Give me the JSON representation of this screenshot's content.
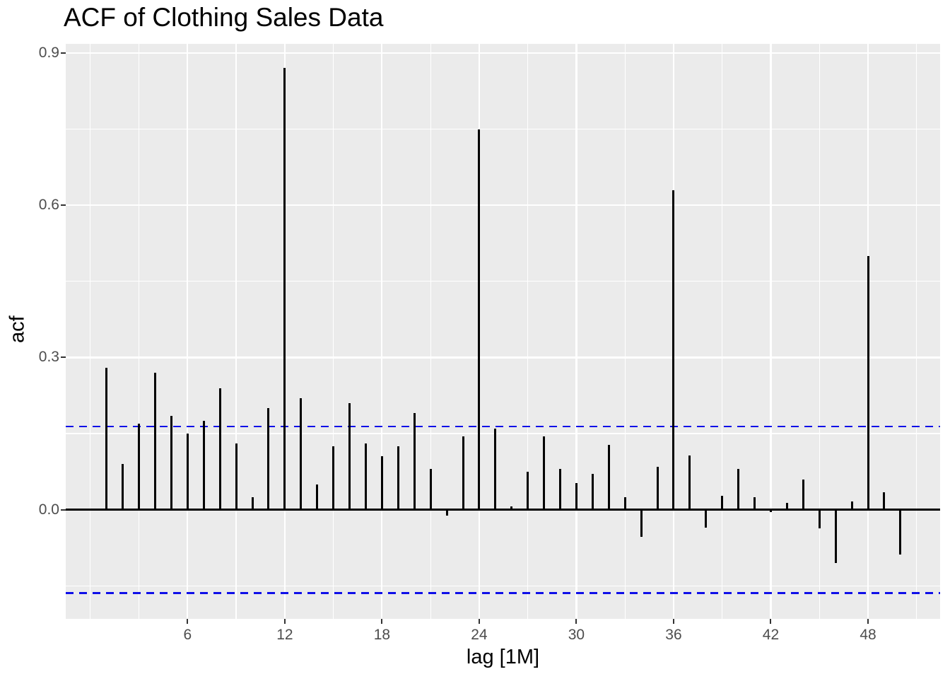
{
  "title": "ACF of Clothing Sales Data",
  "colors": {
    "page_bg": "#ffffff",
    "panel_bg": "#ebebeb",
    "grid": "#ffffff",
    "bar": "#000000",
    "zero_line": "#000000",
    "ci_line": "#0f0fe8",
    "tick_label": "#4d4d4d",
    "tick_mark": "#333333",
    "text": "#000000"
  },
  "chart_data": {
    "type": "bar",
    "subtype": "acf-lollipop",
    "title": "ACF of Clothing Sales Data",
    "xlabel": "lag [1M]",
    "ylabel": "acf",
    "x": [
      1,
      2,
      3,
      4,
      5,
      6,
      7,
      8,
      9,
      10,
      11,
      12,
      13,
      14,
      15,
      16,
      17,
      18,
      19,
      20,
      21,
      22,
      23,
      24,
      25,
      26,
      27,
      28,
      29,
      30,
      31,
      32,
      33,
      34,
      35,
      36,
      37,
      38,
      39,
      40,
      41,
      42,
      43,
      44,
      45,
      46,
      47,
      48,
      49,
      50
    ],
    "values": [
      0.28,
      0.09,
      0.17,
      0.27,
      0.185,
      0.15,
      0.175,
      0.24,
      0.13,
      0.025,
      0.2,
      0.87,
      0.22,
      0.05,
      0.125,
      0.21,
      0.13,
      0.105,
      0.125,
      0.19,
      0.08,
      -0.012,
      0.145,
      0.75,
      0.16,
      0.007,
      0.075,
      0.145,
      0.08,
      0.052,
      0.07,
      0.128,
      0.025,
      -0.053,
      0.085,
      0.63,
      0.107,
      -0.035,
      0.028,
      0.08,
      0.025,
      -0.005,
      0.013,
      0.06,
      -0.037,
      -0.105,
      0.017,
      0.5,
      0.035,
      -0.088
    ],
    "ci_upper": 0.164,
    "ci_lower": -0.164,
    "ci_line_style": "dashed",
    "xlim": [
      -1.52,
      52.45
    ],
    "ylim": [
      -0.215,
      0.918
    ],
    "x_major_ticks": [
      6,
      12,
      18,
      24,
      30,
      36,
      42,
      48
    ],
    "x_tick_labels": [
      "6",
      "12",
      "18",
      "24",
      "30",
      "36",
      "42",
      "48"
    ],
    "x_minor_gridlines": [
      0,
      3,
      9,
      15,
      21,
      27,
      33,
      39,
      45,
      51
    ],
    "y_major_ticks": [
      0.0,
      0.3,
      0.6,
      0.9
    ],
    "y_tick_labels": [
      "0.0",
      "0.3",
      "0.6",
      "0.9"
    ],
    "y_minor_gridlines": [
      -0.15,
      0.15,
      0.45,
      0.75
    ],
    "grid": true,
    "legend": "none"
  }
}
